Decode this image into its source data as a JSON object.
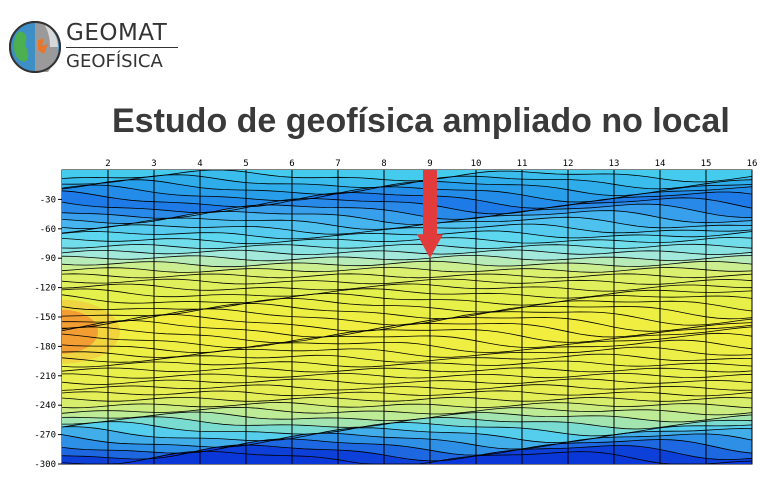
{
  "logo": {
    "name": "GEOMAT",
    "subtitle": "GEOFÍSICA"
  },
  "title": "Estudo de geofísica ampliado no local",
  "colors": {
    "arrow": "#e23b3b",
    "deep_blue": "#0a38d8",
    "blue": "#1d77e6",
    "cyan": "#5ed8f0",
    "yellow": "#f3ee3e",
    "orange": "#f07a2a"
  },
  "chart_data": {
    "type": "heatmap",
    "x_ticks": [
      "2",
      "3",
      "4",
      "5",
      "6",
      "7",
      "8",
      "9",
      "10",
      "11",
      "12",
      "13",
      "14",
      "15",
      "16"
    ],
    "y_ticks": [
      "-30",
      "-60",
      "-90",
      "-120",
      "-150",
      "-180",
      "-210",
      "-240",
      "-270",
      "-300"
    ],
    "xlim": [
      1,
      16
    ],
    "ylim": [
      -300,
      0
    ],
    "grid": true,
    "annotation": {
      "type": "arrow",
      "x": 9,
      "y_from": 0,
      "y_to": -90
    }
  }
}
